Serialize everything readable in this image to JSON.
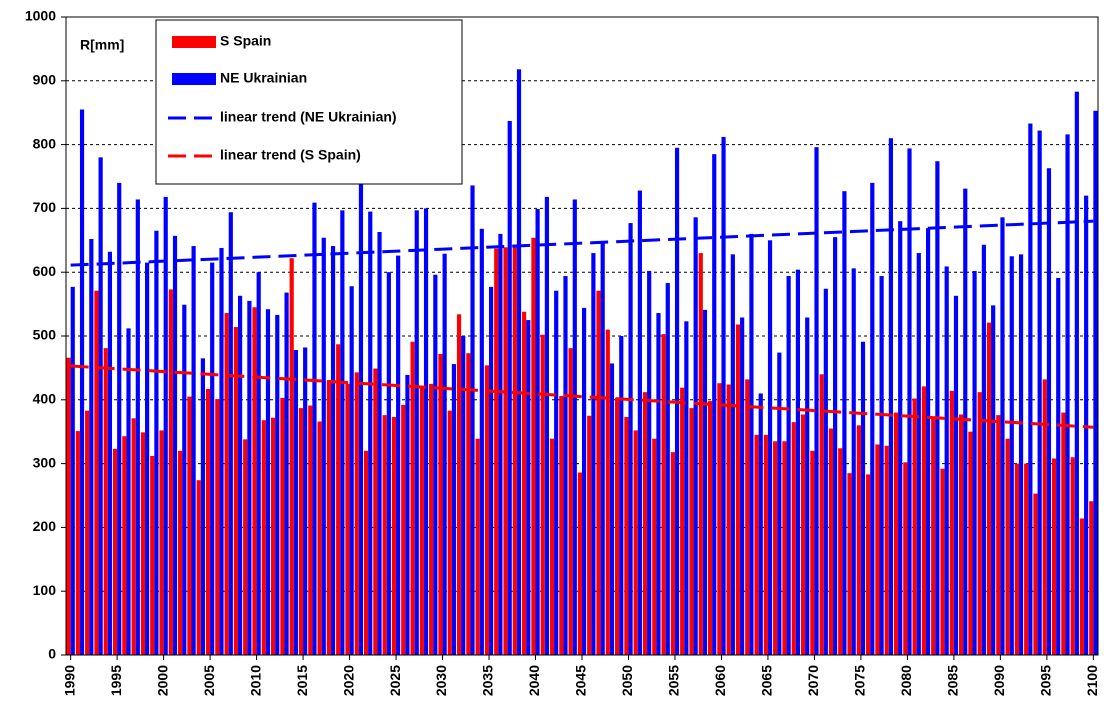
{
  "chart_data": {
    "type": "bar",
    "y_label": "R[mm]",
    "x": [
      1990,
      1991,
      1992,
      1993,
      1994,
      1995,
      1996,
      1997,
      1998,
      1999,
      2000,
      2001,
      2002,
      2003,
      2004,
      2005,
      2006,
      2007,
      2008,
      2009,
      2010,
      2011,
      2012,
      2013,
      2014,
      2015,
      2016,
      2017,
      2018,
      2019,
      2020,
      2021,
      2022,
      2023,
      2024,
      2025,
      2026,
      2027,
      2028,
      2029,
      2030,
      2031,
      2032,
      2033,
      2034,
      2035,
      2036,
      2037,
      2038,
      2039,
      2040,
      2041,
      2042,
      2043,
      2044,
      2045,
      2046,
      2047,
      2048,
      2049,
      2050,
      2051,
      2052,
      2053,
      2054,
      2055,
      2056,
      2057,
      2058,
      2059,
      2060,
      2061,
      2062,
      2063,
      2064,
      2065,
      2066,
      2067,
      2068,
      2069,
      2070,
      2071,
      2072,
      2073,
      2074,
      2075,
      2076,
      2077,
      2078,
      2079,
      2080,
      2081,
      2082,
      2083,
      2084,
      2085,
      2086,
      2087,
      2088,
      2089,
      2090,
      2091,
      2092,
      2093,
      2094,
      2095,
      2096,
      2097,
      2098,
      2099,
      2100
    ],
    "series": [
      {
        "name": "S Spain",
        "color": "#ff0000",
        "kind": "bar",
        "values": [
          466,
          351,
          383,
          571,
          481,
          323,
          343,
          371,
          349,
          312,
          352,
          573,
          320,
          405,
          274,
          417,
          401,
          536,
          514,
          338,
          545,
          368,
          372,
          403,
          622,
          387,
          391,
          366,
          431,
          487,
          425,
          443,
          320,
          449,
          376,
          373,
          392,
          491,
          420,
          425,
          472,
          383,
          534,
          473,
          339,
          454,
          637,
          639,
          640,
          538,
          654,
          502,
          339,
          406,
          481,
          286,
          375,
          571,
          510,
          403,
          373,
          352,
          412,
          339,
          503,
          318,
          419,
          387,
          630,
          398,
          426,
          424,
          518,
          432,
          345,
          345,
          335,
          335,
          365,
          377,
          320,
          440,
          355,
          324,
          285,
          360,
          283,
          330,
          328,
          380,
          302,
          402,
          421,
          372,
          292,
          414,
          377,
          350,
          412,
          521,
          376,
          339,
          300,
          300,
          253,
          432,
          308,
          380,
          310,
          214,
          241
        ]
      },
      {
        "name": "NE Ukrainian",
        "color": "#0000ff",
        "kind": "bar",
        "values": [
          577,
          855,
          652,
          780,
          632,
          740,
          512,
          714,
          615,
          665,
          718,
          657,
          549,
          641,
          465,
          615,
          638,
          694,
          563,
          555,
          600,
          542,
          533,
          568,
          478,
          482,
          709,
          654,
          641,
          697,
          578,
          742,
          695,
          663,
          600,
          626,
          439,
          697,
          700,
          596,
          629,
          456,
          500,
          736,
          668,
          577,
          660,
          837,
          918,
          525,
          699,
          718,
          571,
          594,
          714,
          544,
          630,
          649,
          457,
          500,
          677,
          728,
          602,
          536,
          583,
          795,
          523,
          686,
          541,
          785,
          812,
          628,
          529,
          660,
          410,
          650,
          474,
          594,
          604,
          529,
          796,
          574,
          655,
          727,
          606,
          491,
          740,
          594,
          810,
          680,
          794,
          630,
          669,
          774,
          609,
          563,
          731,
          602,
          643,
          548,
          686,
          625,
          628,
          833,
          822,
          763,
          591,
          816,
          883,
          720,
          853
        ]
      },
      {
        "name": "linear trend (NE Ukrainian)",
        "color": "#0000ff",
        "kind": "trend",
        "x": [
          1990,
          2100
        ],
        "values": [
          611,
          680
        ]
      },
      {
        "name": "linear trend (S Spain)",
        "color": "#ff0000",
        "kind": "trend",
        "x": [
          1990,
          2100
        ],
        "values": [
          453,
          357
        ]
      }
    ],
    "xlim": [
      1990,
      2100
    ],
    "xticks": [
      1990,
      1995,
      2000,
      2005,
      2010,
      2015,
      2020,
      2025,
      2030,
      2035,
      2040,
      2045,
      2050,
      2055,
      2060,
      2065,
      2070,
      2075,
      2080,
      2085,
      2090,
      2095,
      2100
    ],
    "ylim": [
      0,
      1000
    ],
    "yticks": [
      0,
      100,
      200,
      300,
      400,
      500,
      600,
      700,
      800,
      900,
      1000
    ],
    "grid": true,
    "legend": "upper left"
  }
}
